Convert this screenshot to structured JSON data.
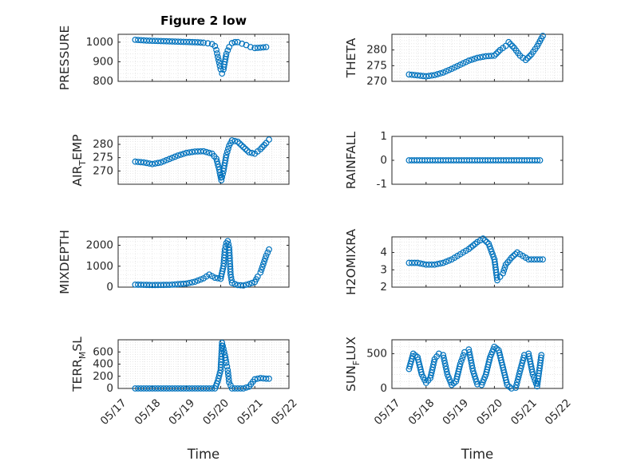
{
  "figure": {
    "background": "#ffffff",
    "marker_color": "#0072bd",
    "axis_color": "#262626",
    "grid_color": "#d9d9d9"
  },
  "chart_data": [
    {
      "type": "scatter",
      "title": "Figure 2 low",
      "ylabel": "PRESSURE",
      "ylabel_parts": [
        {
          "t": "PRESSURE",
          "sub": false
        }
      ],
      "xlabel": "",
      "xticks": [
        "05/17",
        "05/18",
        "05/19",
        "05/20",
        "05/21",
        "05/22"
      ],
      "show_xticklabels": false,
      "xlim": [
        "05/17",
        "05/22"
      ],
      "ylim": [
        800,
        1040
      ],
      "yticks": [
        800,
        900,
        1000
      ],
      "ytick_labels": [
        "800",
        "900",
        "1000"
      ],
      "grid": true,
      "x": [
        "05/17 12:00",
        "05/17 16:00",
        "05/17 20:00",
        "05/18 00:00",
        "05/18 04:00",
        "05/18 08:00",
        "05/18 12:00",
        "05/18 16:00",
        "05/18 20:00",
        "05/19 00:00",
        "05/19 04:00",
        "05/19 08:00",
        "05/19 12:00",
        "05/19 15:00",
        "05/19 18:00",
        "05/19 20:00",
        "05/19 21:00",
        "05/19 22:00",
        "05/19 23:00",
        "05/20 00:00",
        "05/20 01:00",
        "05/20 02:00",
        "05/20 03:00",
        "05/20 04:00",
        "05/20 06:00",
        "05/20 08:00",
        "05/20 10:00",
        "05/20 12:00",
        "05/20 15:00",
        "05/20 18:00",
        "05/20 21:00",
        "05/21 00:00",
        "05/21 04:00",
        "05/21 08:00"
      ],
      "y": [
        1012,
        1010,
        1008,
        1007,
        1006,
        1005,
        1004,
        1003,
        1002,
        1001,
        1000,
        999,
        997,
        994,
        990,
        980,
        960,
        925,
        895,
        862,
        840,
        860,
        900,
        940,
        975,
        995,
        1000,
        1000,
        992,
        985,
        975,
        970,
        972,
        975
      ]
    },
    {
      "type": "scatter",
      "ylabel": "THETA",
      "ylabel_parts": [
        {
          "t": "THETA",
          "sub": false
        }
      ],
      "xlabel": "",
      "xticks": [
        "05/17",
        "05/18",
        "05/19",
        "05/20",
        "05/21",
        "05/22"
      ],
      "show_xticklabels": false,
      "xlim": [
        "05/17",
        "05/22"
      ],
      "ylim": [
        270,
        285
      ],
      "yticks": [
        270,
        275,
        280
      ],
      "ytick_labels": [
        "270",
        "275",
        "280"
      ],
      "grid": true,
      "x": [
        "05/17 12:00",
        "05/17 18:00",
        "05/18 00:00",
        "05/18 06:00",
        "05/18 12:00",
        "05/18 18:00",
        "05/19 00:00",
        "05/19 06:00",
        "05/19 12:00",
        "05/19 18:00",
        "05/20 00:00",
        "05/20 04:00",
        "05/20 08:00",
        "05/20 10:00",
        "05/20 14:00",
        "05/20 18:00",
        "05/20 22:00",
        "05/21 02:00",
        "05/21 06:00",
        "05/21 10:00"
      ],
      "y": [
        272.2,
        271.9,
        271.6,
        272,
        272.8,
        274,
        275.3,
        276.6,
        277.5,
        278,
        278.2,
        280,
        281.3,
        282.5,
        280.6,
        278.2,
        276.8,
        278.6,
        281.2,
        284.5
      ]
    },
    {
      "type": "scatter",
      "ylabel": "AIR_TEMP",
      "ylabel_parts": [
        {
          "t": "AIR",
          "sub": false
        },
        {
          "t": "T",
          "sub": true
        },
        {
          "t": "EMP",
          "sub": false
        }
      ],
      "xlabel": "",
      "xticks": [
        "05/17",
        "05/18",
        "05/19",
        "05/20",
        "05/21",
        "05/22"
      ],
      "show_xticklabels": false,
      "xlim": [
        "05/17",
        "05/22"
      ],
      "ylim": [
        265,
        283
      ],
      "yticks": [
        270,
        275,
        280
      ],
      "ytick_labels": [
        "270",
        "275",
        "280"
      ],
      "grid": true,
      "x": [
        "05/17 12:00",
        "05/17 18:00",
        "05/18 00:00",
        "05/18 06:00",
        "05/18 12:00",
        "05/18 18:00",
        "05/19 00:00",
        "05/19 06:00",
        "05/19 12:00",
        "05/19 18:00",
        "05/19 21:00",
        "05/19 23:00",
        "05/20 00:30",
        "05/20 02:00",
        "05/20 04:00",
        "05/20 06:00",
        "05/20 08:00",
        "05/20 12:00",
        "05/20 16:00",
        "05/20 20:00",
        "05/21 00:00",
        "05/21 04:00",
        "05/21 08:00",
        "05/21 10:00"
      ],
      "y": [
        273.5,
        273.2,
        272.6,
        273.2,
        274.5,
        275.8,
        276.8,
        277.3,
        277.4,
        276.5,
        274.6,
        270.5,
        266.5,
        270,
        276,
        279.5,
        281.5,
        281,
        279,
        277,
        276.5,
        278.2,
        280.5,
        281.8
      ]
    },
    {
      "type": "scatter",
      "ylabel": "RAINFALL",
      "ylabel_parts": [
        {
          "t": "RAINFALL",
          "sub": false
        }
      ],
      "xlabel": "",
      "xticks": [
        "05/17",
        "05/18",
        "05/19",
        "05/20",
        "05/21",
        "05/22"
      ],
      "show_xticklabels": false,
      "xlim": [
        "05/17",
        "05/22"
      ],
      "ylim": [
        -1,
        1
      ],
      "yticks": [
        -1,
        0,
        1
      ],
      "ytick_labels": [
        "-1",
        "0",
        "1"
      ],
      "grid": false,
      "x": [
        "05/17 12:00",
        "05/18 12:00",
        "05/19 12:00",
        "05/20 12:00",
        "05/21 08:00"
      ],
      "y": [
        0,
        0,
        0,
        0,
        0
      ]
    },
    {
      "type": "scatter",
      "ylabel": "MIXDEPTH",
      "ylabel_parts": [
        {
          "t": "MIXDEPTH",
          "sub": false
        }
      ],
      "xlabel": "",
      "xticks": [
        "05/17",
        "05/18",
        "05/19",
        "05/20",
        "05/21",
        "05/22"
      ],
      "show_xticklabels": false,
      "xlim": [
        "05/17",
        "05/22"
      ],
      "ylim": [
        0,
        2400
      ],
      "yticks": [
        0,
        1000,
        2000
      ],
      "ytick_labels": [
        "0",
        "1000",
        "2000"
      ],
      "grid": true,
      "x": [
        "05/17 12:00",
        "05/18 00:00",
        "05/18 12:00",
        "05/19 00:00",
        "05/19 06:00",
        "05/19 12:00",
        "05/19 16:00",
        "05/19 20:00",
        "05/20 00:00",
        "05/20 02:00",
        "05/20 03:00",
        "05/20 04:00",
        "05/20 05:00",
        "05/20 06:00",
        "05/20 07:00",
        "05/20 08:00",
        "05/20 12:00",
        "05/20 16:00",
        "05/20 20:00",
        "05/21 00:00",
        "05/21 02:00",
        "05/21 04:00",
        "05/21 06:00",
        "05/21 08:00",
        "05/21 10:00"
      ],
      "y": [
        120,
        100,
        110,
        170,
        260,
        420,
        600,
        450,
        400,
        1000,
        1800,
        2100,
        2200,
        1900,
        600,
        200,
        100,
        80,
        150,
        250,
        500,
        700,
        1100,
        1500,
        1800
      ]
    },
    {
      "type": "scatter",
      "ylabel": "H2OMIXRA",
      "ylabel_parts": [
        {
          "t": "H2OMIXRA",
          "sub": false
        }
      ],
      "xlabel": "",
      "xticks": [
        "05/17",
        "05/18",
        "05/19",
        "05/20",
        "05/21",
        "05/22"
      ],
      "show_xticklabels": false,
      "xlim": [
        "05/17",
        "05/22"
      ],
      "ylim": [
        2,
        4.9
      ],
      "yticks": [
        2,
        3,
        4
      ],
      "ytick_labels": [
        "2",
        "3",
        "4"
      ],
      "grid": true,
      "x": [
        "05/17 12:00",
        "05/17 18:00",
        "05/18 00:00",
        "05/18 06:00",
        "05/18 12:00",
        "05/18 18:00",
        "05/19 00:00",
        "05/19 06:00",
        "05/19 12:00",
        "05/19 16:00",
        "05/19 20:00",
        "05/20 00:00",
        "05/20 02:00",
        "05/20 04:00",
        "05/20 06:00",
        "05/20 08:00",
        "05/20 12:00",
        "05/20 16:00",
        "05/20 20:00",
        "05/21 00:00",
        "05/21 04:00",
        "05/21 10:00"
      ],
      "y": [
        3.4,
        3.4,
        3.3,
        3.3,
        3.4,
        3.6,
        3.9,
        4.2,
        4.6,
        4.8,
        4.5,
        3.6,
        2.4,
        2.6,
        2.8,
        3.3,
        3.7,
        4,
        3.8,
        3.6,
        3.6,
        3.6
      ]
    },
    {
      "type": "scatter",
      "ylabel": "TERR_MSL",
      "ylabel_parts": [
        {
          "t": "TERR",
          "sub": false
        },
        {
          "t": "M",
          "sub": true
        },
        {
          "t": "SL",
          "sub": false
        }
      ],
      "xlabel": "Time",
      "xticks": [
        "05/17",
        "05/18",
        "05/19",
        "05/20",
        "05/21",
        "05/22"
      ],
      "show_xticklabels": true,
      "xlim": [
        "05/17",
        "05/22"
      ],
      "ylim": [
        0,
        800
      ],
      "yticks": [
        0,
        200,
        400,
        600
      ],
      "ytick_labels": [
        "0",
        "200",
        "400",
        "600"
      ],
      "grid": true,
      "x": [
        "05/17 12:00",
        "05/18 00:00",
        "05/18 12:00",
        "05/19 00:00",
        "05/19 12:00",
        "05/19 20:00",
        "05/19 22:00",
        "05/20 00:00",
        "05/20 01:00",
        "05/20 02:00",
        "05/20 03:00",
        "05/20 04:00",
        "05/20 05:00",
        "05/20 06:00",
        "05/20 08:00",
        "05/20 12:00",
        "05/20 16:00",
        "05/20 20:00",
        "05/21 00:00",
        "05/21 04:00",
        "05/21 08:00",
        "05/21 10:00"
      ],
      "y": [
        0,
        0,
        0,
        0,
        0,
        0,
        120,
        300,
        750,
        650,
        550,
        420,
        300,
        100,
        0,
        0,
        0,
        30,
        150,
        170,
        160,
        160
      ]
    },
    {
      "type": "scatter",
      "ylabel": "SUN_FLUX",
      "ylabel_parts": [
        {
          "t": "SUN",
          "sub": false
        },
        {
          "t": "F",
          "sub": true
        },
        {
          "t": "LUX",
          "sub": false
        }
      ],
      "xlabel": "Time",
      "xticks": [
        "05/17",
        "05/18",
        "05/19",
        "05/20",
        "05/21",
        "05/22"
      ],
      "show_xticklabels": true,
      "xlim": [
        "05/17",
        "05/22"
      ],
      "ylim": [
        0,
        700
      ],
      "yticks": [
        0,
        500
      ],
      "ytick_labels": [
        "0",
        "500"
      ],
      "grid": true,
      "x": [
        "05/17 12:00",
        "05/17 15:00",
        "05/17 18:00",
        "05/17 21:00",
        "05/18 00:00",
        "05/18 03:00",
        "05/18 06:00",
        "05/18 09:00",
        "05/18 12:00",
        "05/18 15:00",
        "05/18 18:00",
        "05/18 21:00",
        "05/19 00:00",
        "05/19 03:00",
        "05/19 06:00",
        "05/19 09:00",
        "05/19 12:00",
        "05/19 15:00",
        "05/19 18:00",
        "05/19 21:00",
        "05/20 00:00",
        "05/20 03:00",
        "05/20 06:00",
        "05/20 09:00",
        "05/20 12:00",
        "05/20 15:00",
        "05/20 18:00",
        "05/20 21:00",
        "05/21 00:00",
        "05/21 03:00",
        "05/21 06:00",
        "05/21 09:00"
      ],
      "y": [
        280,
        500,
        450,
        200,
        80,
        150,
        420,
        500,
        480,
        200,
        50,
        100,
        350,
        520,
        560,
        250,
        60,
        50,
        200,
        450,
        600,
        550,
        300,
        50,
        0,
        10,
        250,
        480,
        500,
        200,
        30,
        480
      ]
    }
  ]
}
